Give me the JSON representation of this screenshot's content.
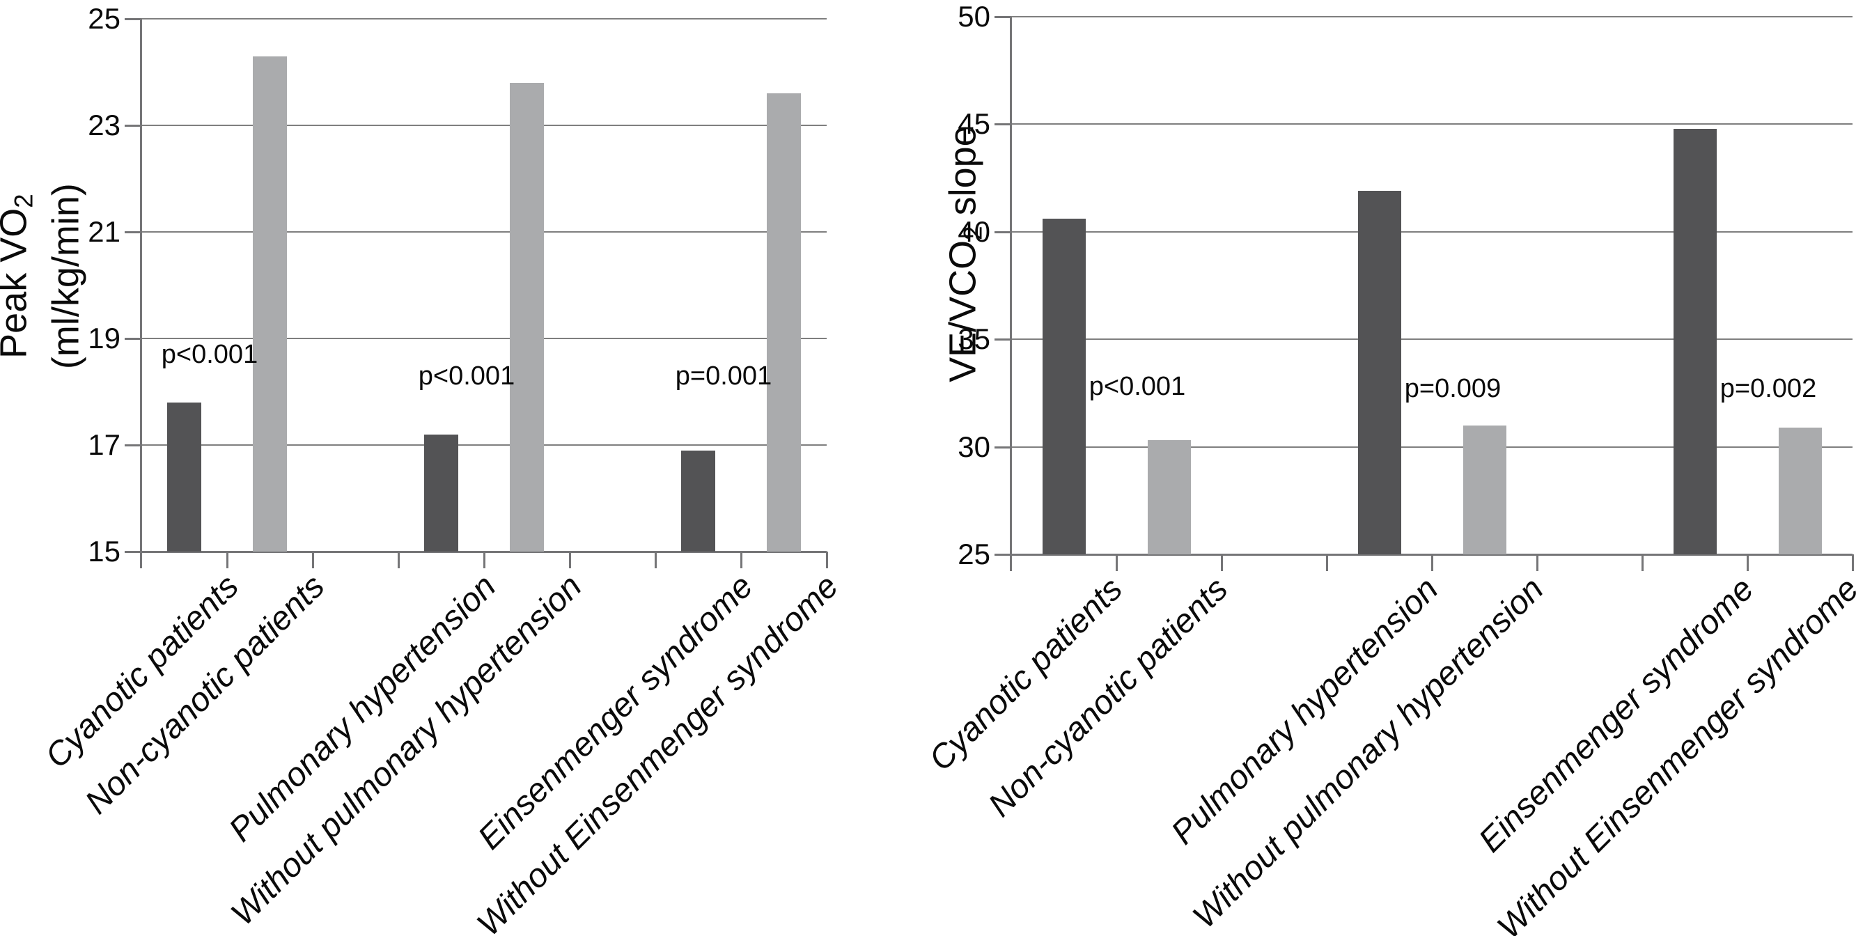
{
  "colors": {
    "dark_bar": "#535355",
    "light_bar": "#aaabad",
    "grid_line": "#7f7f7f",
    "axis_line": "#757577",
    "text": "#0a0a0a"
  },
  "categories": [
    "Cyanotic patients",
    "Non-cyanotic patients",
    "Pulmonary hypertension",
    "Without pulmonary hypertension",
    "Einsenmenger syndrome",
    "Without Einsenmenger syndrome"
  ],
  "chart_data": [
    {
      "type": "bar",
      "id": "peak-vo2",
      "title": "",
      "ylabel": {
        "main": "Peak VO",
        "sub": "2",
        "rest": "",
        "line2": "(ml/kg/min)"
      },
      "xlabel": "",
      "ylim": [
        15,
        25
      ],
      "yticks": [
        15,
        17,
        19,
        21,
        23,
        25
      ],
      "grid": "horizontal",
      "legend": "none",
      "num_slots": 8,
      "bar_slots": [
        0,
        1,
        3,
        4,
        6,
        7
      ],
      "categories": [
        "Cyanotic patients",
        "Non-cyanotic patients",
        "Pulmonary hypertension",
        "Without pulmonary hypertension",
        "Einsenmenger syndrome",
        "Without Einsenmenger syndrome"
      ],
      "values": [
        17.8,
        24.3,
        17.2,
        23.8,
        16.9,
        23.6
      ],
      "shade_pattern": [
        "dark",
        "light",
        "dark",
        "light",
        "dark",
        "light"
      ],
      "annotations": [
        {
          "text": "p<0.001",
          "pair": 0,
          "y": 18.7
        },
        {
          "text": "p<0.001",
          "pair": 1,
          "y": 18.3
        },
        {
          "text": "p=0.001",
          "pair": 2,
          "y": 18.3
        }
      ]
    },
    {
      "type": "bar",
      "id": "ve-vco2-slope",
      "title": "",
      "ylabel": {
        "main": "VE/VCO",
        "sub": "2",
        "rest": " slope",
        "line2": ""
      },
      "xlabel": "",
      "ylim": [
        25,
        50
      ],
      "yticks": [
        25,
        30,
        35,
        40,
        45,
        50
      ],
      "grid": "horizontal",
      "legend": "none",
      "num_slots": 8,
      "bar_slots": [
        0,
        1,
        3,
        4,
        6,
        7
      ],
      "categories": [
        "Cyanotic patients",
        "Non-cyanotic patients",
        "Pulmonary hypertension",
        "Without pulmonary hypertension",
        "Einsenmenger syndrome",
        "Without Einsenmenger syndrome"
      ],
      "values": [
        40.6,
        30.3,
        41.9,
        31.0,
        44.8,
        30.9
      ],
      "shade_pattern": [
        "dark",
        "light",
        "dark",
        "light",
        "dark",
        "light"
      ],
      "annotations": [
        {
          "text": "p<0.001",
          "pair": 0,
          "y": 32.8
        },
        {
          "text": "p=0.009",
          "pair": 1,
          "y": 32.7
        },
        {
          "text": "p=0.002",
          "pair": 2,
          "y": 32.7
        }
      ]
    }
  ]
}
